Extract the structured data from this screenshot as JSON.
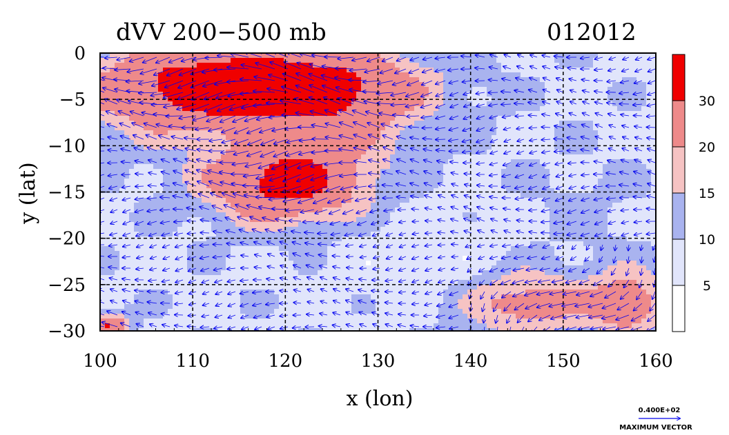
{
  "chart_data": {
    "type": "heatmap",
    "title": "dVV 200−500 mb",
    "date_label": "012012",
    "xlabel": "x (lon)",
    "ylabel": "y (lat)",
    "x_ticks": [
      100,
      110,
      120,
      130,
      140,
      150,
      160
    ],
    "y_ticks": [
      0,
      -5,
      -10,
      -15,
      -20,
      -25,
      -30
    ],
    "y_tick_labels": [
      "0",
      "−5",
      "−10",
      "−15",
      "−20",
      "−25",
      "−30"
    ],
    "xlim": [
      100,
      160
    ],
    "ylim": [
      -30,
      0
    ],
    "grid": true,
    "colorbar": {
      "levels": [
        0,
        5,
        10,
        15,
        20,
        30,
        40
      ],
      "labels": [
        "5",
        "10",
        "15",
        "20",
        "30"
      ],
      "colors": [
        "#ffffff",
        "#e1e5fb",
        "#a9b3ef",
        "#f6c3c3",
        "#ee8a8a",
        "#f00000"
      ]
    },
    "vector_legend": {
      "value_text": "0.400E+02",
      "caption": "MAXIMUM VECTOR"
    },
    "field_centers": [
      {
        "lon": 119,
        "lat": -3.5,
        "value": 36,
        "sx": 10,
        "sy": 3
      },
      {
        "lon": 120,
        "lat": -14,
        "value": 34,
        "sx": 6,
        "sy": 3
      },
      {
        "lon": 107,
        "lat": -4,
        "value": 20,
        "sx": 8,
        "sy": 4
      },
      {
        "lon": 127,
        "lat": -7,
        "value": 16,
        "sx": 6,
        "sy": 4
      },
      {
        "lon": 146,
        "lat": -27,
        "value": 24,
        "sx": 5,
        "sy": 2.5
      },
      {
        "lon": 157,
        "lat": -27,
        "value": 25,
        "sx": 3,
        "sy": 2.5
      },
      {
        "lon": 152,
        "lat": -17,
        "value": 11,
        "sx": 5,
        "sy": 4
      },
      {
        "lon": 136,
        "lat": -22,
        "value": 6,
        "sx": 7,
        "sy": 4
      },
      {
        "lon": 104,
        "lat": -12,
        "value": 9,
        "sx": 4,
        "sy": 3
      },
      {
        "lon": 101,
        "lat": -29.5,
        "value": 30,
        "sx": 1.5,
        "sy": 1
      }
    ]
  }
}
